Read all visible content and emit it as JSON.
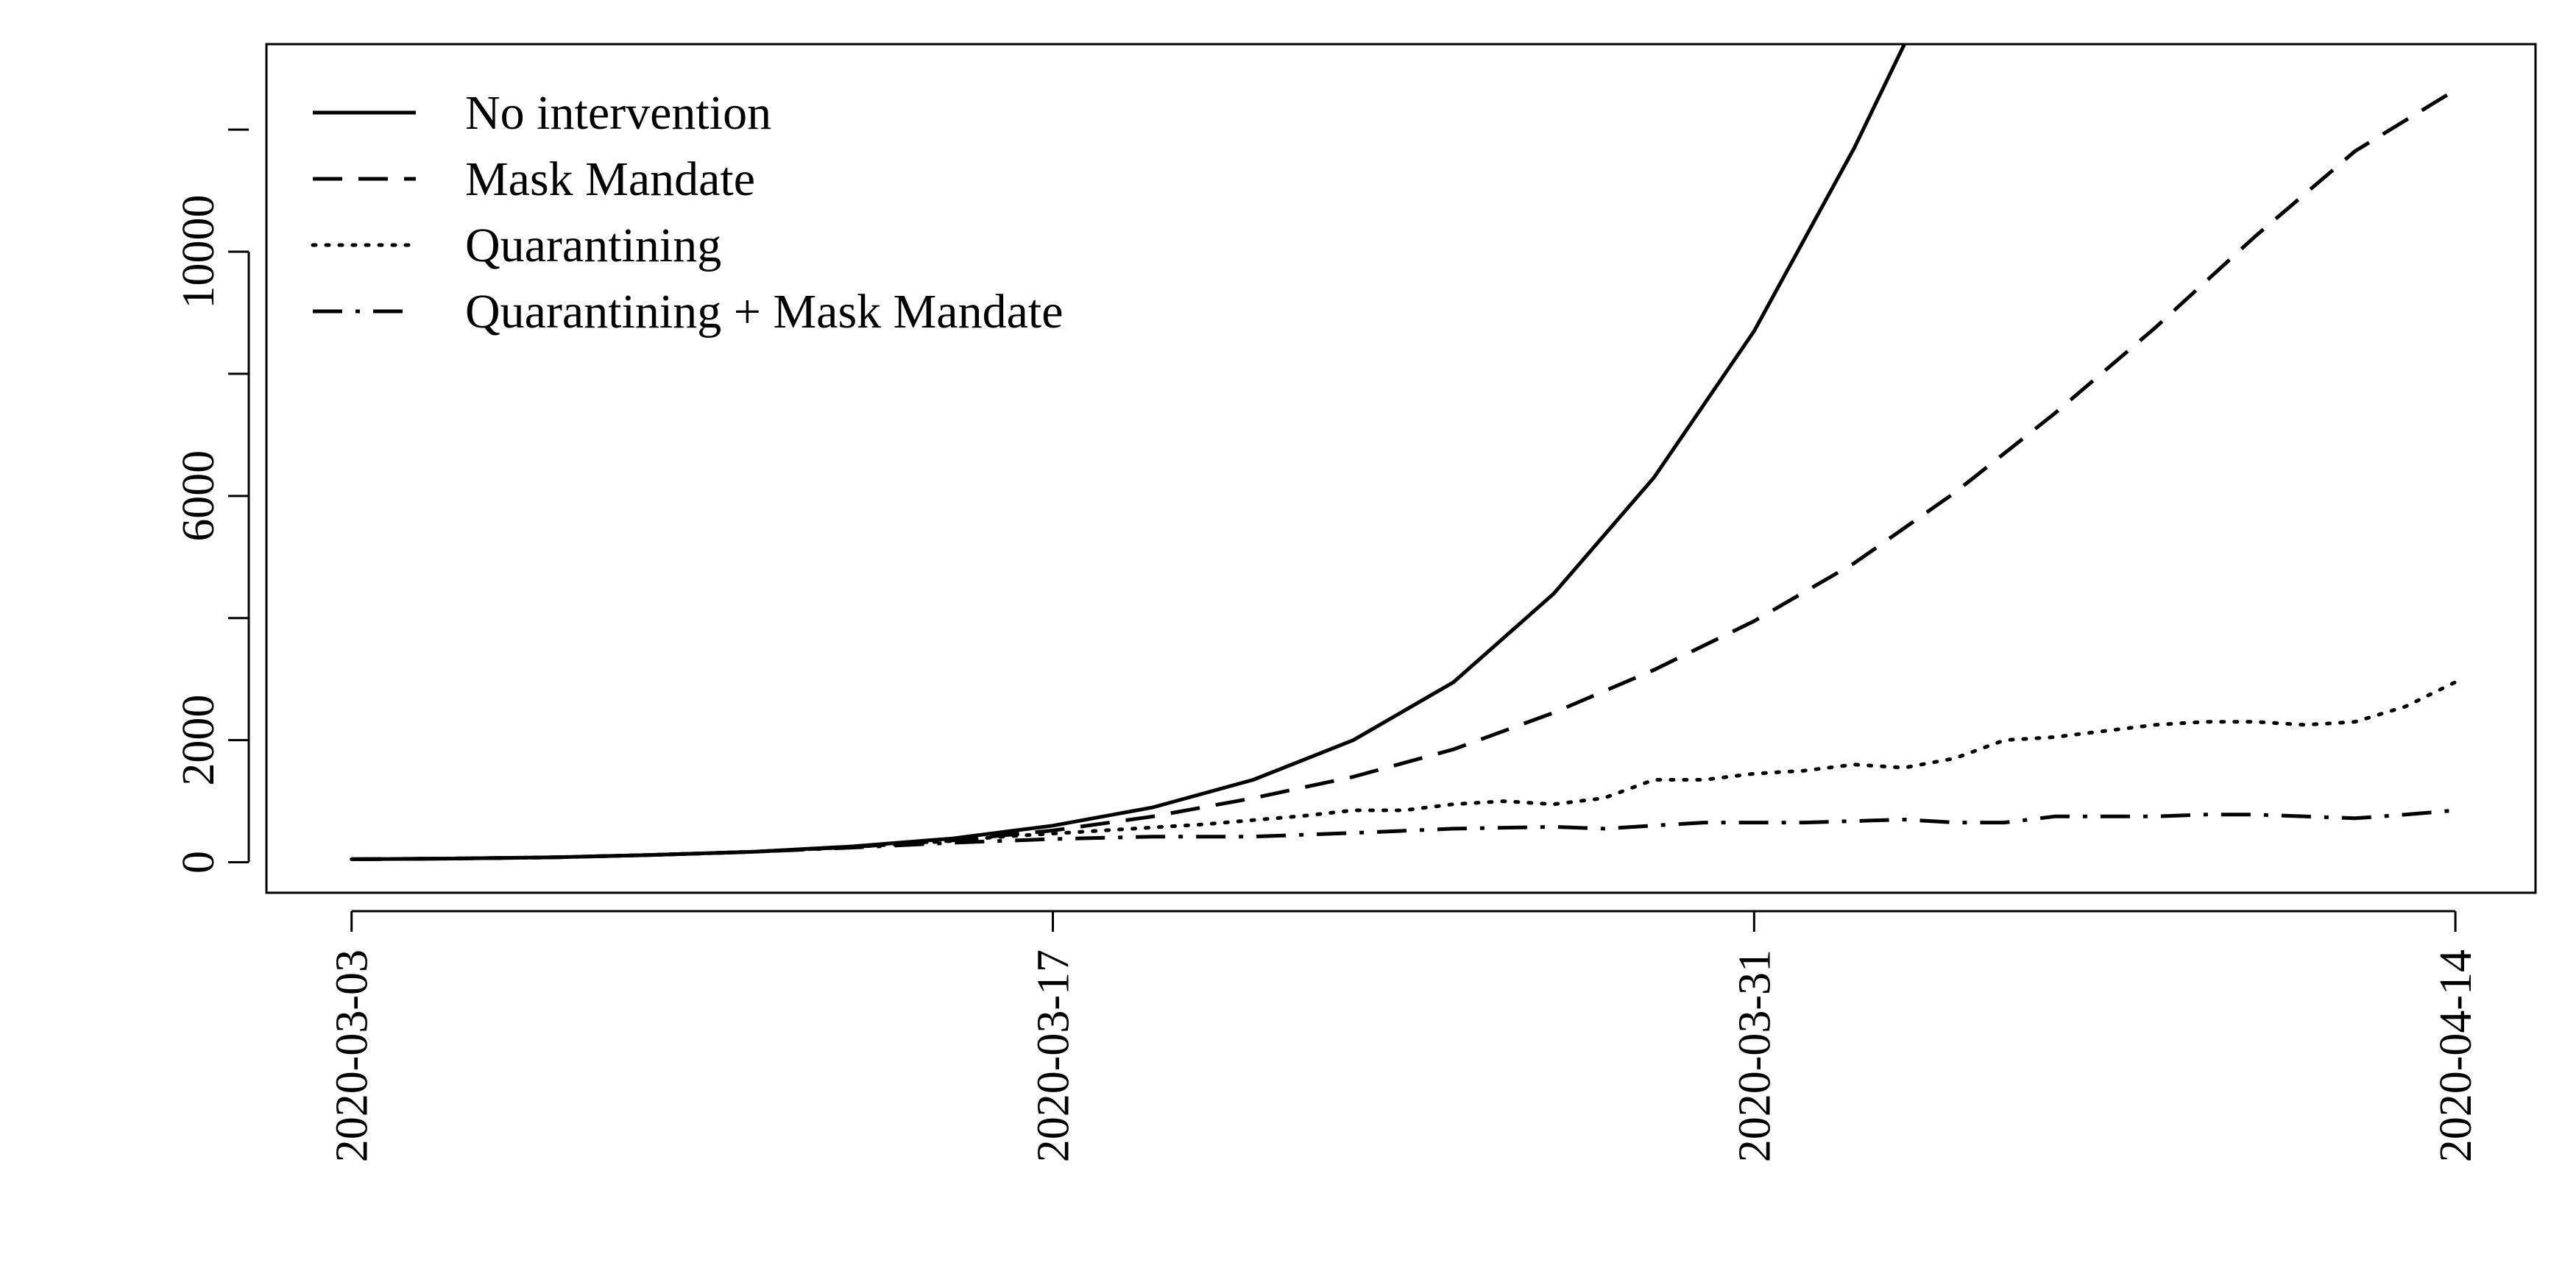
{
  "chart_data": {
    "type": "line",
    "title": "",
    "xlabel": "",
    "ylabel": "",
    "x_tick_labels": [
      "2020-03-03",
      "2020-03-17",
      "2020-03-31",
      "2020-04-14"
    ],
    "x_tick_days": [
      0,
      14,
      28,
      42
    ],
    "y_ticks": [
      0,
      2000,
      6000,
      10000
    ],
    "ylim": [
      -500,
      13400
    ],
    "xlim": [
      -1.7,
      43.6
    ],
    "legend_position": "top-left",
    "series": [
      {
        "name": "No intervention",
        "style": "solid",
        "x": [
          0,
          2,
          4,
          6,
          8,
          10,
          12,
          14,
          16,
          18,
          20,
          22,
          24,
          26,
          28,
          30,
          31
        ],
        "values": [
          50,
          60,
          80,
          120,
          170,
          260,
          390,
          600,
          900,
          1350,
          2000,
          2950,
          4400,
          6300,
          8700,
          11700,
          13400
        ]
      },
      {
        "name": "Mask Mandate",
        "style": "dashed",
        "x": [
          0,
          2,
          4,
          6,
          8,
          10,
          12,
          14,
          16,
          18,
          20,
          22,
          24,
          26,
          28,
          30,
          32,
          34,
          36,
          38,
          40,
          42
        ],
        "values": [
          50,
          60,
          80,
          120,
          170,
          250,
          360,
          520,
          750,
          1050,
          1400,
          1850,
          2450,
          3150,
          3950,
          4900,
          6050,
          7350,
          8750,
          10250,
          11650,
          12650
        ]
      },
      {
        "name": "Quarantining",
        "style": "dotted",
        "x": [
          0,
          2,
          4,
          6,
          8,
          10,
          12,
          13,
          15,
          17,
          19,
          20,
          21,
          22,
          23,
          24,
          25,
          26,
          27,
          28,
          29,
          30,
          31,
          32,
          33,
          34,
          35,
          36,
          37,
          38,
          39,
          40,
          41,
          42
        ],
        "values": [
          50,
          60,
          80,
          120,
          170,
          250,
          350,
          420,
          520,
          620,
          760,
          850,
          850,
          950,
          1000,
          950,
          1050,
          1350,
          1350,
          1450,
          1500,
          1600,
          1550,
          1700,
          2000,
          2050,
          2150,
          2250,
          2300,
          2300,
          2250,
          2300,
          2550,
          2950
        ]
      },
      {
        "name": "Quarantining + Mask Mandate",
        "style": "dashdot",
        "x": [
          0,
          2,
          4,
          6,
          8,
          10,
          12,
          14,
          16,
          18,
          20,
          22,
          24,
          25,
          27,
          29,
          31,
          32,
          33,
          34,
          35,
          36,
          37,
          38,
          39,
          40,
          41,
          42
        ],
        "values": [
          50,
          60,
          80,
          120,
          170,
          240,
          320,
          380,
          420,
          420,
          480,
          550,
          580,
          550,
          650,
          650,
          700,
          650,
          650,
          750,
          750,
          750,
          780,
          780,
          750,
          720,
          780,
          850
        ]
      }
    ]
  }
}
